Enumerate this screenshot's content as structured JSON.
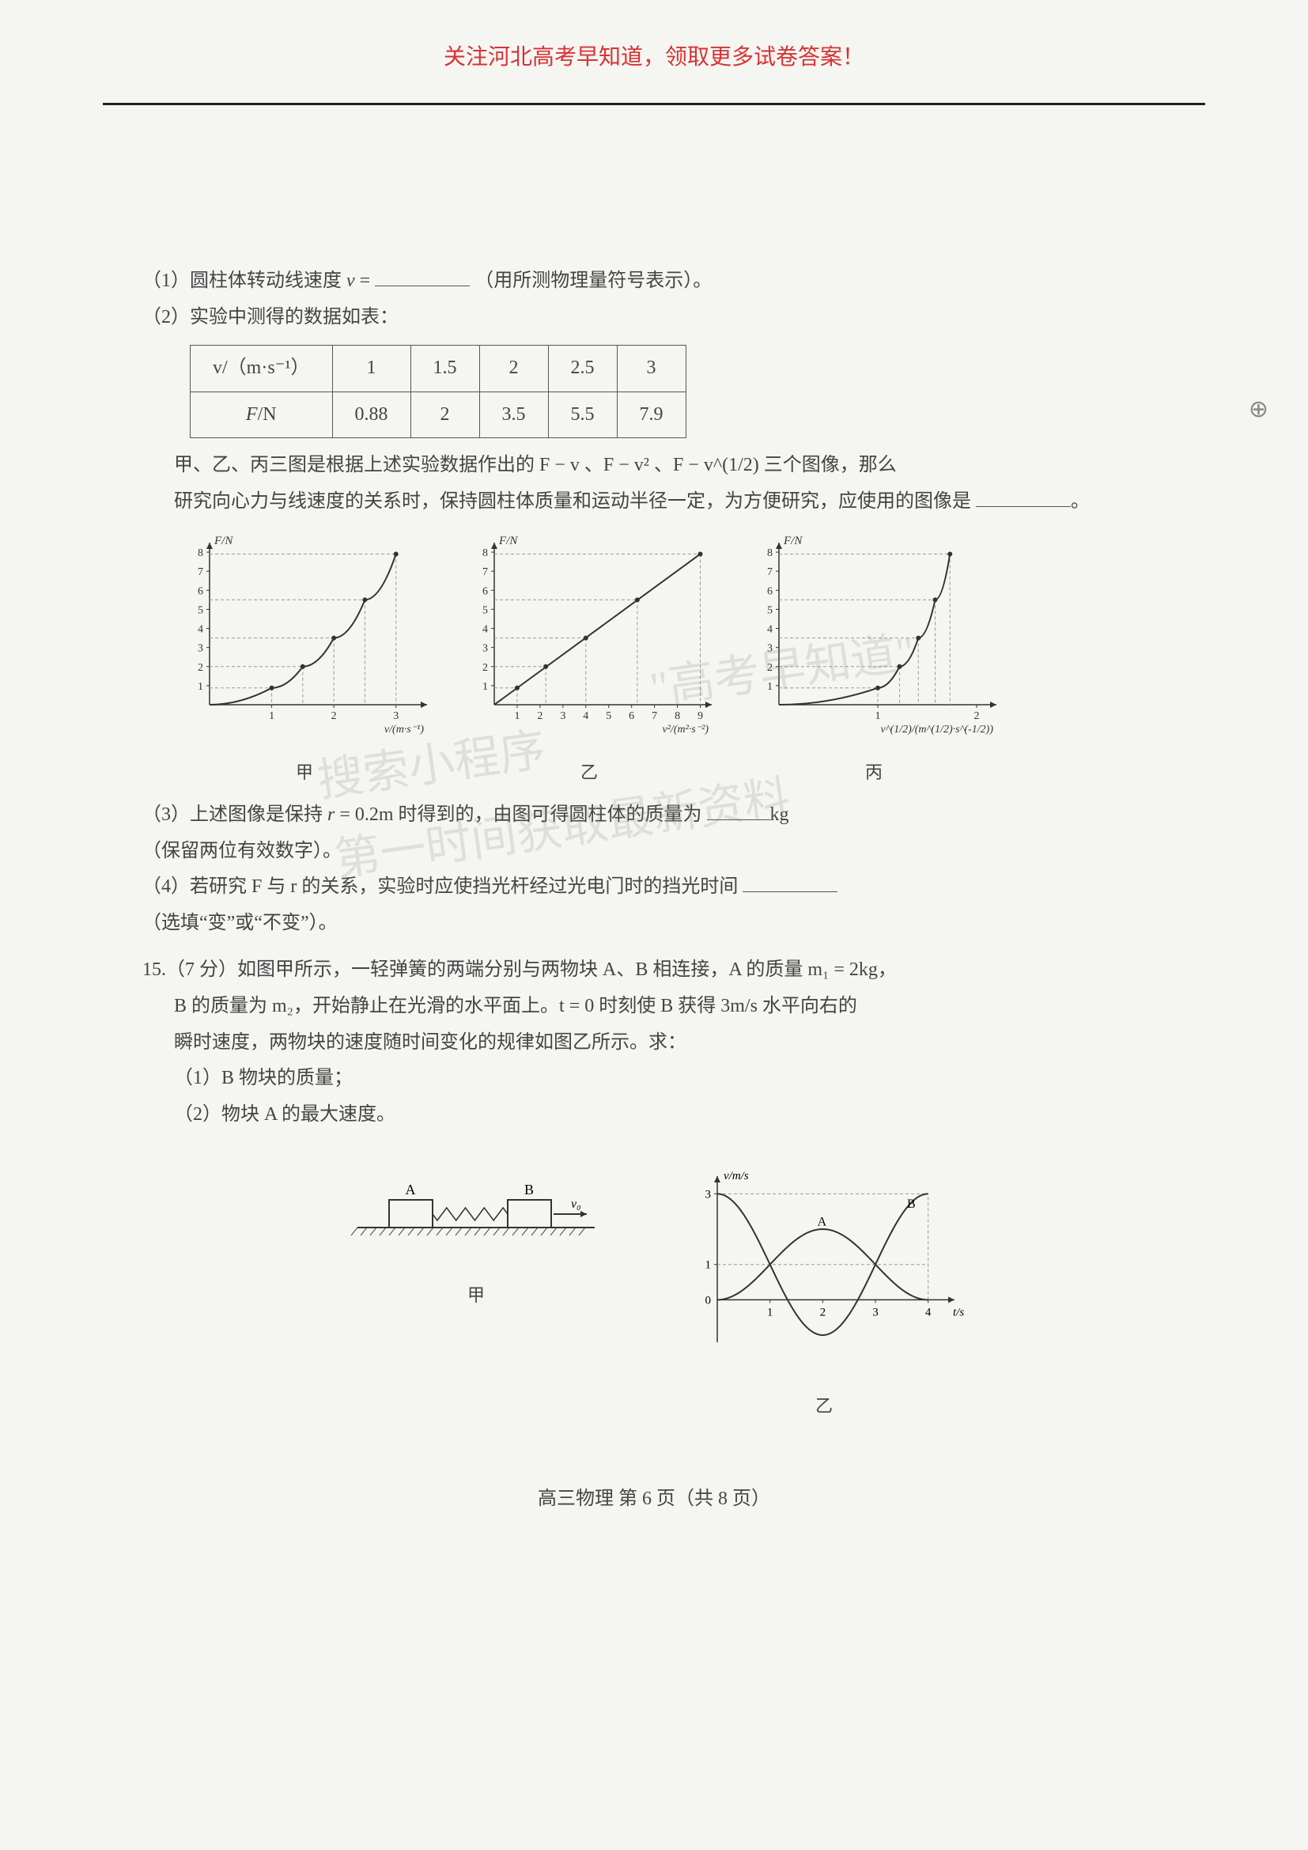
{
  "header": "关注河北高考早知道，领取更多试卷答案！",
  "q_parts": {
    "p1_a": "（1）圆柱体转动线速度 ",
    "p1_var": "v",
    "p1_b": " = ",
    "p1_c": "（用所测物理量符号表示）。",
    "p2": "（2）实验中测得的数据如表：",
    "table": {
      "row1_head": "v/（m·s⁻¹）",
      "row2_head": "F/N",
      "cols": [
        "1",
        "1.5",
        "2",
        "2.5",
        "3"
      ],
      "row2": [
        "0.88",
        "2",
        "3.5",
        "5.5",
        "7.9"
      ]
    },
    "p_after_table_1": "甲、乙、丙三图是根据上述实验数据作出的 F − v 、F − v² 、F − v^(1/2) 三个图像，那么",
    "p_after_table_2": "研究向心力与线速度的关系时，保持圆柱体质量和运动半径一定，为方便研究，应使用的图像是 ",
    "p_after_table_3": "。",
    "p3_a": "（3）上述图像是保持 ",
    "p3_var": "r",
    "p3_b": " = 0.2m 时得到的，由图可得圆柱体的质量为 ",
    "p3_unit": "kg",
    "p3_c": "（保留两位有效数字）。",
    "p4_a": "（4）若研究 F 与 r 的关系，实验时应使挡光杆经过光电门时的挡光时间 ",
    "p4_b": "（选填“变”或“不变”）。"
  },
  "q15": {
    "stem_a": "15.（7 分）如图甲所示，一轻弹簧的两端分别与两物块 A、B 相连接，A 的质量 m₁ = 2kg，",
    "stem_b": "B 的质量为 m₂，开始静止在光滑的水平面上。t = 0 时刻使 B 获得 3m/s 水平向右的",
    "stem_c": "瞬时速度，两物块的速度随时间变化的规律如图乙所示。求：",
    "sub1": "（1）B 物块的质量；",
    "sub2": "（2）物块 A 的最大速度。"
  },
  "chart_common": {
    "y_label": "F/N",
    "y_ticks": [
      1,
      2,
      3,
      4,
      5,
      6,
      7,
      8
    ],
    "color_axis": "#333333",
    "color_grid": "#999999",
    "color_curve": "#333333",
    "background": "#f5f5f2"
  },
  "charts": {
    "jia": {
      "caption": "甲",
      "x_label": "v/(m·s⁻¹)",
      "x_ticks": [
        1,
        2,
        3
      ],
      "xlim": [
        0,
        3.5
      ],
      "ylim": [
        0,
        8.5
      ],
      "points": [
        [
          1,
          0.88
        ],
        [
          1.5,
          2
        ],
        [
          2,
          3.5
        ],
        [
          2.5,
          5.5
        ],
        [
          3,
          7.9
        ]
      ],
      "curve_type": "quadratic"
    },
    "yi": {
      "caption": "乙",
      "x_label": "v²/(m²·s⁻²)",
      "x_ticks": [
        1,
        2,
        3,
        4,
        5,
        6,
        7,
        8,
        9
      ],
      "xlim": [
        0,
        9.5
      ],
      "ylim": [
        0,
        8.5
      ],
      "points": [
        [
          1,
          0.88
        ],
        [
          2.25,
          2
        ],
        [
          4,
          3.5
        ],
        [
          6.25,
          5.5
        ],
        [
          9,
          7.9
        ]
      ],
      "curve_type": "linear"
    },
    "bing": {
      "caption": "丙",
      "x_label": "v^(1/2)/(m^(1/2)·s^(-1/2))",
      "x_ticks": [
        1,
        2
      ],
      "xlim": [
        0,
        2.2
      ],
      "ylim": [
        0,
        8.5
      ],
      "points": [
        [
          1,
          0.88
        ],
        [
          1.22,
          2
        ],
        [
          1.41,
          3.5
        ],
        [
          1.58,
          5.5
        ],
        [
          1.73,
          7.9
        ]
      ],
      "curve_type": "steep"
    }
  },
  "spring_fig": {
    "label_A": "A",
    "label_B": "B",
    "label_v0": "v₀",
    "caption": "甲"
  },
  "vt_graph": {
    "y_label": "v/m/s",
    "x_label": "t/s",
    "y_ticks": [
      0,
      1,
      3
    ],
    "x_ticks": [
      1,
      2,
      3,
      4
    ],
    "label_A": "A",
    "label_B": "B",
    "caption": "乙",
    "color_axis": "#333333",
    "color_curve": "#333333",
    "color_grid": "#999999"
  },
  "footer": "高三物理 第 6 页（共 8 页）",
  "watermarks": {
    "w1": "\"高考早知道\"",
    "w2": "搜索小程序",
    "w3": "第一时间获取最新资料"
  }
}
